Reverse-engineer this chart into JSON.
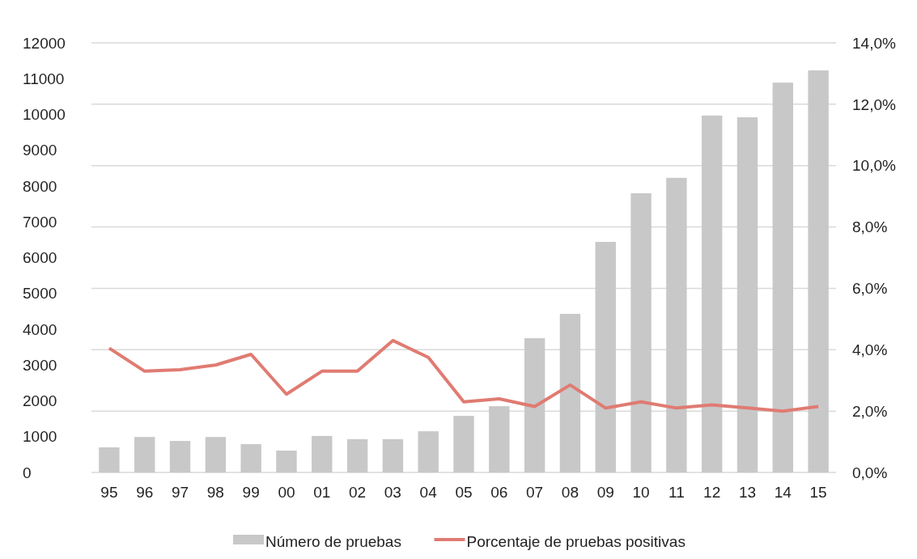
{
  "chart_data": {
    "type": "bar",
    "categories": [
      "95",
      "96",
      "97",
      "98",
      "99",
      "00",
      "01",
      "02",
      "03",
      "04",
      "05",
      "06",
      "07",
      "08",
      "09",
      "10",
      "11",
      "12",
      "13",
      "14",
      "15"
    ],
    "series": [
      {
        "name": "Número de pruebas",
        "color": "#c8c8c8",
        "values": [
          700,
          990,
          880,
          990,
          790,
          610,
          1020,
          930,
          930,
          1150,
          1580,
          1850,
          3750,
          4430,
          6440,
          7800,
          8230,
          9970,
          9920,
          10890,
          11230
        ]
      },
      {
        "name": "Porcentaje de pruebas positivas",
        "type": "line",
        "axis": "y2",
        "color": "#e07b72",
        "values": [
          4.05,
          3.3,
          3.35,
          3.5,
          3.85,
          2.55,
          3.3,
          3.3,
          4.3,
          3.75,
          2.3,
          2.4,
          2.15,
          2.85,
          2.1,
          2.3,
          2.1,
          2.2,
          2.1,
          2.0,
          2.15
        ]
      }
    ],
    "ylim": [
      0,
      12000
    ],
    "yticks": [
      0,
      1000,
      2000,
      3000,
      4000,
      5000,
      6000,
      7000,
      8000,
      9000,
      10000,
      11000,
      12000
    ],
    "y2lim": [
      0,
      14
    ],
    "y2ticks": [
      {
        "value": 0,
        "label": "0,0%"
      },
      {
        "value": 2,
        "label": "2,0%"
      },
      {
        "value": 4,
        "label": "4,0%"
      },
      {
        "value": 6,
        "label": "6,0%"
      },
      {
        "value": 8,
        "label": "8,0%"
      },
      {
        "value": 10,
        "label": "10,0%"
      },
      {
        "value": 12,
        "label": "12,0%"
      },
      {
        "value": 14,
        "label": "14,0%"
      }
    ],
    "grid": "y2",
    "legend": "bottom",
    "marker": "none",
    "line_style": "solid"
  }
}
